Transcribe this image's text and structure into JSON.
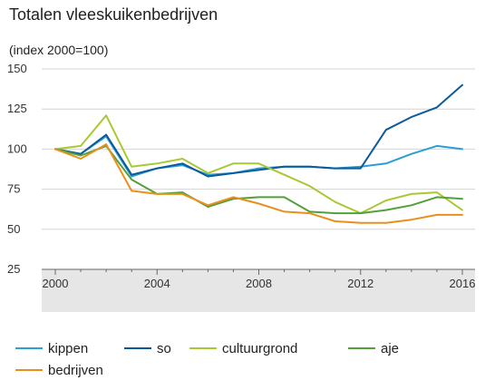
{
  "chart_data": {
    "type": "line",
    "title": "Totalen vleeskuikenbedrijven",
    "ylabel": "(index 2000=100)",
    "xlabel": "",
    "x": [
      2000,
      2001,
      2002,
      2003,
      2004,
      2005,
      2006,
      2007,
      2008,
      2009,
      2010,
      2011,
      2012,
      2013,
      2014,
      2015,
      2016
    ],
    "xticks": [
      2000,
      2004,
      2008,
      2012,
      2016
    ],
    "yticks": [
      25,
      50,
      75,
      100,
      125,
      150
    ],
    "xlim": [
      2000,
      2016
    ],
    "ylim": [
      25,
      150
    ],
    "grid": "horizontal",
    "legend": "bottom",
    "series": [
      {
        "name": "kippen",
        "color": "#2a9fd6",
        "values": [
          100,
          97,
          108,
          83,
          88,
          90,
          84,
          85,
          88,
          89,
          89,
          88,
          89,
          91,
          97,
          102,
          100
        ]
      },
      {
        "name": "so",
        "color": "#0b5a9c",
        "values": [
          100,
          97,
          109,
          84,
          88,
          91,
          83,
          85,
          87,
          89,
          89,
          88,
          88,
          112,
          120,
          126,
          140
        ]
      },
      {
        "name": "cultuurgrond",
        "color": "#a9c934",
        "values": [
          100,
          102,
          121,
          89,
          91,
          94,
          85,
          91,
          91,
          84,
          77,
          67,
          60,
          68,
          72,
          73,
          62
        ]
      },
      {
        "name": "aje",
        "color": "#53a03a",
        "values": [
          100,
          96,
          102,
          81,
          72,
          73,
          64,
          69,
          70,
          70,
          61,
          60,
          60,
          62,
          65,
          70,
          69
        ]
      },
      {
        "name": "bedrijven",
        "color": "#e8901b",
        "values": [
          100,
          94,
          103,
          74,
          72,
          72,
          65,
          70,
          66,
          61,
          60,
          55,
          54,
          54,
          56,
          59,
          59
        ]
      }
    ]
  }
}
